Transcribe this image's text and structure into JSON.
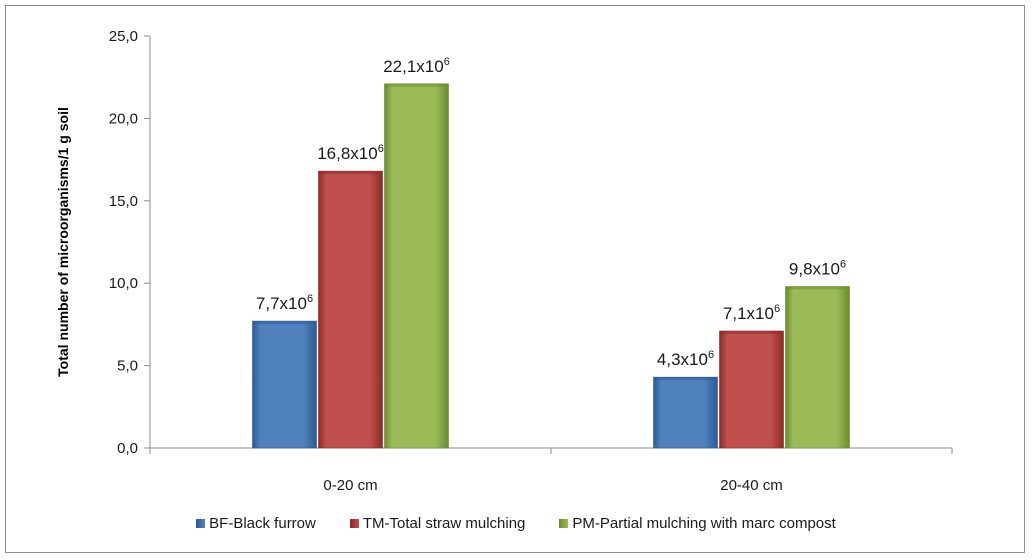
{
  "chart_data": {
    "type": "bar",
    "ylabel": "Total number of microorganisms/1 g soil",
    "xlabel": "",
    "ylim": [
      0,
      25
    ],
    "yticks": [
      "0,0",
      "5,0",
      "10,0",
      "15,0",
      "20,0",
      "25,0"
    ],
    "ytick_values": [
      0,
      5,
      10,
      15,
      20,
      25
    ],
    "categories": [
      "0-20 cm",
      "20-40 cm"
    ],
    "series": [
      {
        "name": "BF-Black furrow",
        "values": [
          7.7,
          4.3
        ],
        "labels": [
          "7,7x10",
          "4,3x10"
        ],
        "color": "#4f81bd",
        "dark": "#2c5a93"
      },
      {
        "name": "TM-Total straw mulching",
        "values": [
          16.8,
          7.1
        ],
        "labels": [
          "16,8x10",
          "7,1x10"
        ],
        "color": "#c0504d",
        "dark": "#8e2a28"
      },
      {
        "name": "PM-Partial mulching with marc compost",
        "values": [
          22.1,
          9.8
        ],
        "labels": [
          "22,1x10",
          "9,8x10"
        ],
        "color": "#9bbb59",
        "dark": "#6a8c2c"
      }
    ],
    "label_exponent": "6",
    "grid": false,
    "legend_position": "bottom"
  }
}
